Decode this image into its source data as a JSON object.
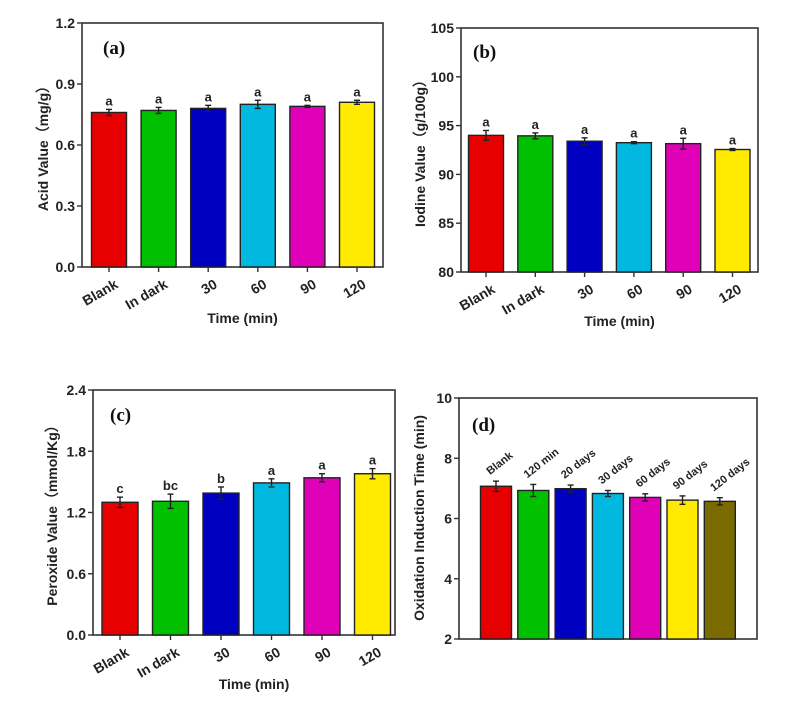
{
  "chart_data": [
    {
      "type": "bar",
      "panel_label": "(a)",
      "title": "",
      "xlabel": "Time (min)",
      "ylabel": "Acid Value（mg/g）",
      "categories": [
        "Blank",
        "In dark",
        "30",
        "60",
        "90",
        "120"
      ],
      "values": [
        0.76,
        0.77,
        0.78,
        0.8,
        0.79,
        0.81
      ],
      "errors": [
        0.015,
        0.015,
        0.015,
        0.02,
        0.005,
        0.01
      ],
      "significance": [
        "a",
        "a",
        "a",
        "a",
        "a",
        "a"
      ],
      "colors": [
        "#e60000",
        "#00c000",
        "#0000c0",
        "#00b8e0",
        "#e000b8",
        "#ffea00"
      ],
      "ylim": [
        0,
        1.2
      ],
      "yticks": [
        "0.0",
        "0.3",
        "0.6",
        "0.9",
        "1.2"
      ],
      "ytick_values": [
        0,
        0.3,
        0.6,
        0.9,
        1.2
      ],
      "grid": false,
      "show_xticklabels": true
    },
    {
      "type": "bar",
      "panel_label": "(b)",
      "title": "",
      "xlabel": "Time (min)",
      "ylabel": "Iodine Value（g/100g）",
      "categories": [
        "Blank",
        "In dark",
        "30",
        "60",
        "90",
        "120"
      ],
      "values": [
        94.0,
        93.95,
        93.4,
        93.25,
        93.15,
        92.55
      ],
      "errors": [
        0.5,
        0.3,
        0.35,
        0.1,
        0.55,
        0.1
      ],
      "significance": [
        "a",
        "a",
        "a",
        "a",
        "a",
        "a"
      ],
      "colors": [
        "#e60000",
        "#00c000",
        "#0000c0",
        "#00b8e0",
        "#e000b8",
        "#ffea00"
      ],
      "ylim": [
        80,
        105
      ],
      "yticks": [
        "80",
        "85",
        "90",
        "95",
        "100",
        "105"
      ],
      "ytick_values": [
        80,
        85,
        90,
        95,
        100,
        105
      ],
      "grid": false,
      "show_xticklabels": true
    },
    {
      "type": "bar",
      "panel_label": "(c)",
      "title": "",
      "xlabel": "Time (min)",
      "ylabel": "Peroxide Value（mmol/Kg）",
      "categories": [
        "Blank",
        "In dark",
        "30",
        "60",
        "90",
        "120"
      ],
      "values": [
        1.3,
        1.31,
        1.39,
        1.49,
        1.54,
        1.58
      ],
      "errors": [
        0.05,
        0.07,
        0.06,
        0.04,
        0.04,
        0.05
      ],
      "significance": [
        "c",
        "bc",
        "b",
        "a",
        "a",
        "a"
      ],
      "colors": [
        "#e60000",
        "#00c000",
        "#0000c0",
        "#00b8e0",
        "#e000b8",
        "#ffea00"
      ],
      "ylim": [
        0,
        2.4
      ],
      "yticks": [
        "0.0",
        "0.6",
        "1.2",
        "1.8",
        "2.4"
      ],
      "ytick_values": [
        0,
        0.6,
        1.2,
        1.8,
        2.4
      ],
      "grid": false,
      "show_xticklabels": true
    },
    {
      "type": "bar",
      "panel_label": "(d)",
      "title": "",
      "xlabel": "",
      "ylabel": "Oxidation Induction Time (min)",
      "categories": [
        "Blank",
        "120 min",
        "20 days",
        "30 days",
        "60 days",
        "90 days",
        "120 days"
      ],
      "values": [
        7.07,
        6.93,
        6.99,
        6.83,
        6.7,
        6.61,
        6.57
      ],
      "errors": [
        0.17,
        0.2,
        0.12,
        0.1,
        0.12,
        0.14,
        0.12
      ],
      "significance": [],
      "colors": [
        "#e60000",
        "#00c000",
        "#0000c0",
        "#00b8e0",
        "#e000b8",
        "#ffea00",
        "#7a6b00"
      ],
      "ylim": [
        2,
        10
      ],
      "yticks": [
        "2",
        "4",
        "6",
        "8",
        "10"
      ],
      "ytick_values": [
        2,
        4,
        6,
        8,
        10
      ],
      "grid": false,
      "show_xticklabels": false,
      "bar_labels_above": true
    }
  ]
}
